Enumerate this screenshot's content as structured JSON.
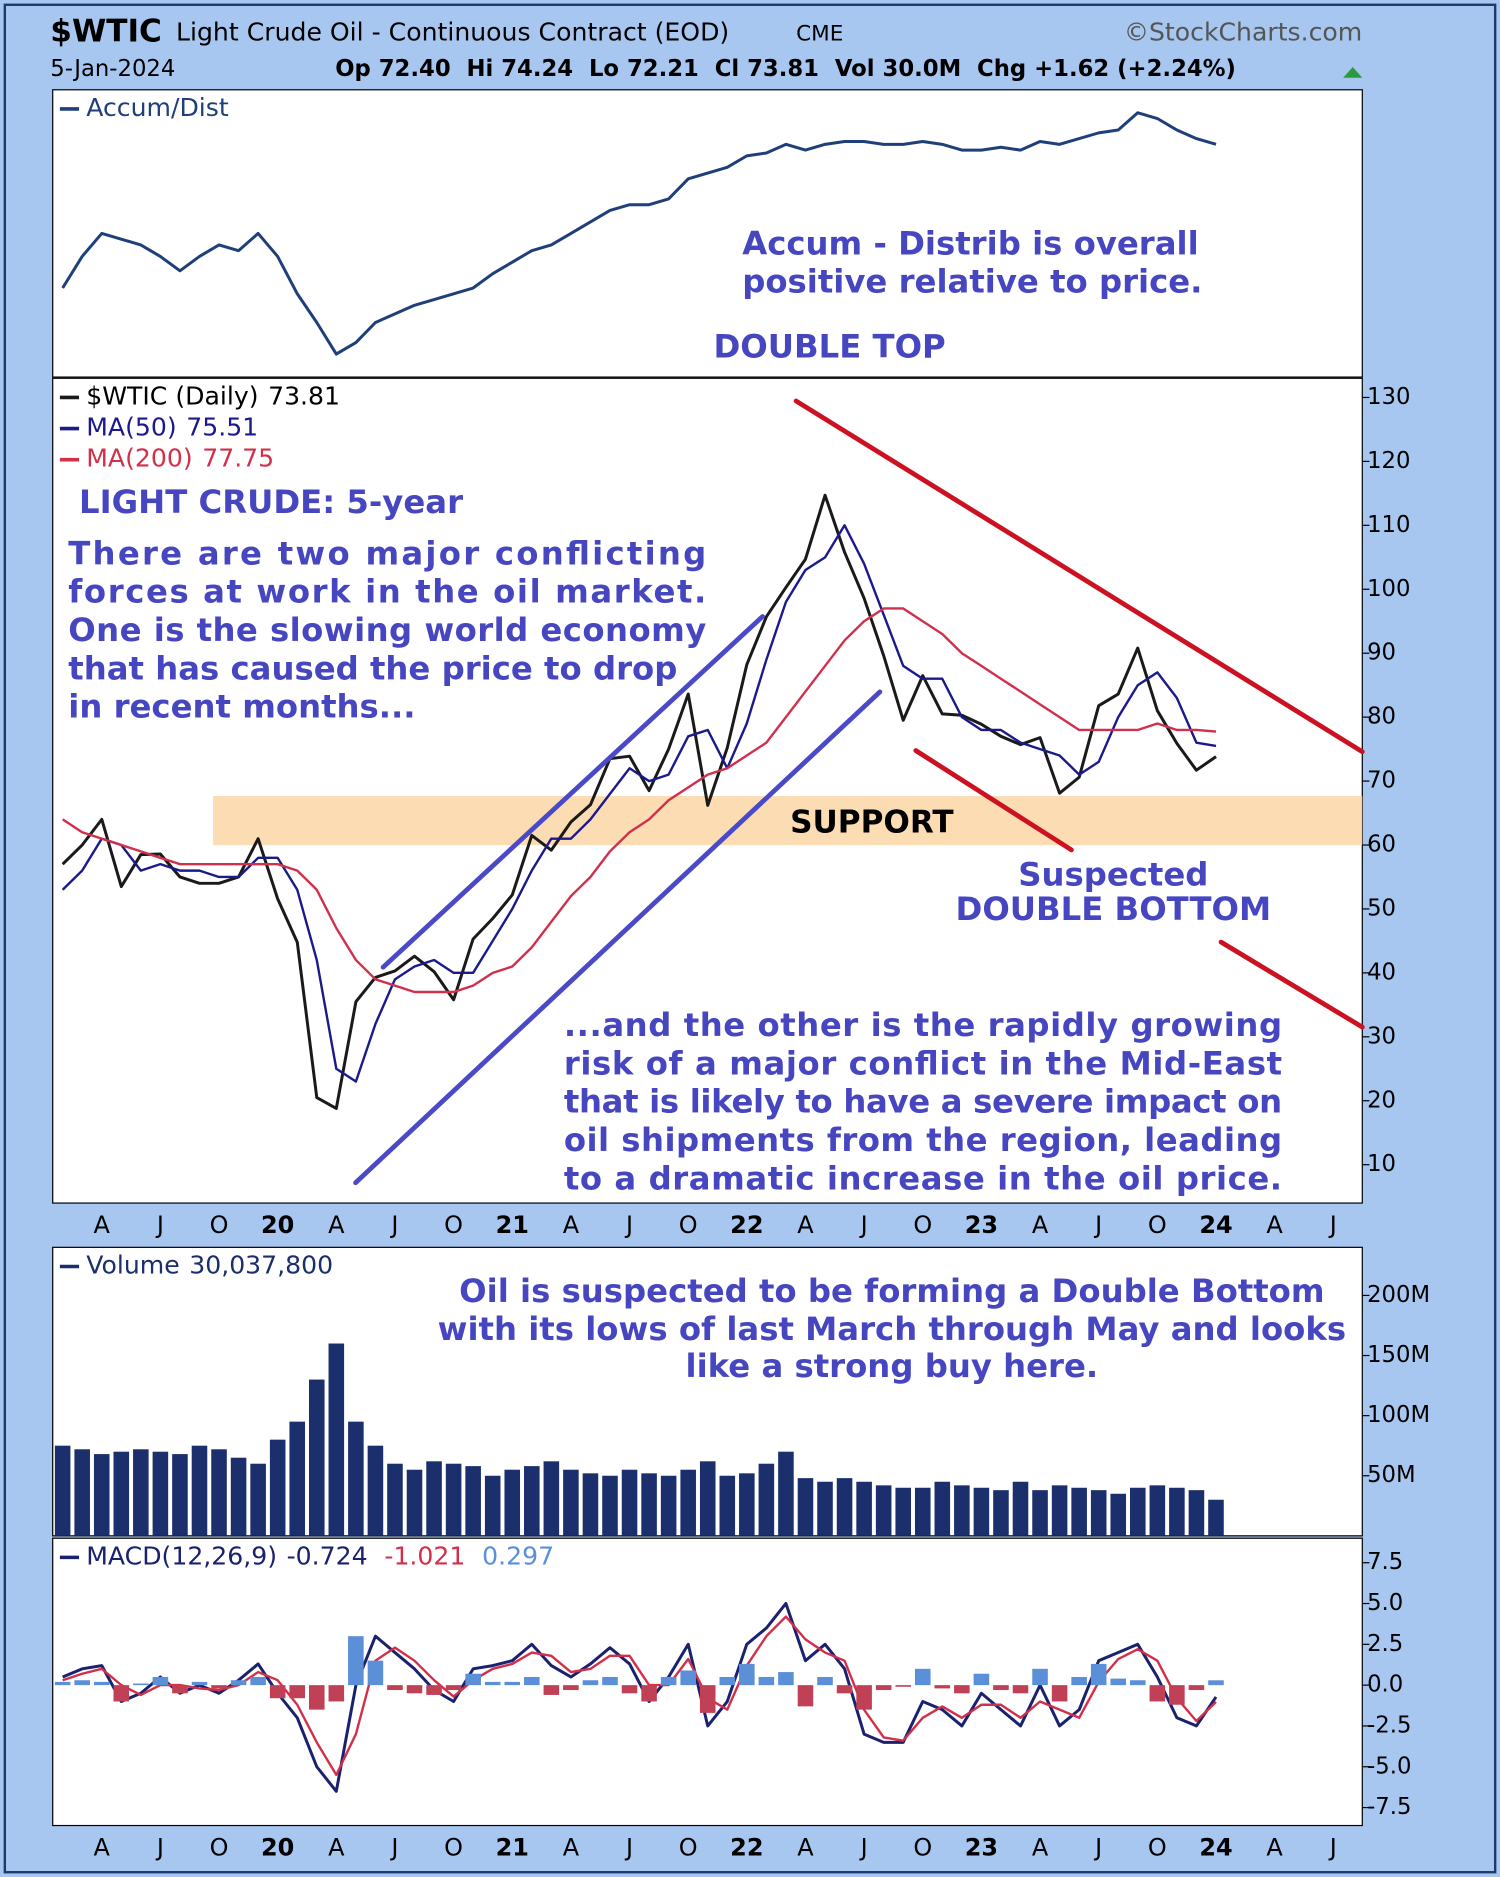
{
  "header": {
    "symbol": "$WTIC",
    "name": "Light Crude Oil - Continuous Contract (EOD)",
    "exchange": "CME",
    "source": "©StockCharts.com",
    "date": "5-Jan-2024",
    "quote": "Op 72.40  Hi 74.24  Lo 72.21  Cl 73.81  Vol 30.0M  Chg +1.62 (+2.24%)"
  },
  "chart_data": [
    {
      "type": "line",
      "ylim": [
        0,
        100
      ],
      "series": [
        {
          "name": "Accum/Dist",
          "color": "#1f3f7a",
          "values": [
            31,
            42,
            50,
            48,
            46,
            42,
            37,
            42,
            46,
            44,
            50,
            42,
            29,
            19,
            8,
            12,
            19,
            22,
            25,
            27,
            29,
            31,
            36,
            40,
            44,
            46,
            50,
            54,
            58,
            60,
            60,
            62,
            69,
            71,
            73,
            77,
            78,
            81,
            79,
            81,
            82,
            82,
            81,
            81,
            82,
            81,
            79,
            79,
            80,
            79,
            82,
            81,
            83,
            85,
            86,
            92,
            90,
            86,
            83,
            81,
            null,
            null,
            null,
            null,
            null,
            null,
            null
          ]
        }
      ],
      "annotations": [
        "Accum - Distrib is overall",
        "positive relative to price."
      ]
    },
    {
      "type": "line",
      "title": "LIGHT CRUDE: 5-year",
      "legend_values": true,
      "categories": [
        null,
        null,
        "A",
        null,
        null,
        "J",
        null,
        null,
        "O",
        null,
        null,
        "20",
        null,
        null,
        "A",
        null,
        null,
        "J",
        null,
        null,
        "O",
        null,
        null,
        "21",
        null,
        null,
        "A",
        null,
        null,
        "J",
        null,
        null,
        "O",
        null,
        null,
        "22",
        null,
        null,
        "A",
        null,
        null,
        "J",
        null,
        null,
        "O",
        null,
        null,
        "23",
        null,
        null,
        "A",
        null,
        null,
        "J",
        null,
        null,
        "O",
        null,
        null,
        "24",
        null,
        null,
        "A",
        null,
        null,
        "J",
        null
      ],
      "ylim": [
        4,
        133
      ],
      "yticks": [
        10,
        20,
        30,
        40,
        50,
        60,
        70,
        80,
        90,
        100,
        110,
        120,
        130
      ],
      "series": [
        {
          "name": "$WTIC (Daily)",
          "color": "#1a1a1a",
          "values": [
            57,
            60,
            64,
            53.5,
            58.5,
            58.6,
            55,
            54,
            54,
            55,
            61,
            51.6,
            44.8,
            20.5,
            18.8,
            35.5,
            39.3,
            40.3,
            42.6,
            40.2,
            35.8,
            45.3,
            48.5,
            52.2,
            61.5,
            59.2,
            63.6,
            66.3,
            73.5,
            73.9,
            68.5,
            75,
            83.6,
            66.2,
            75.2,
            88.2,
            95.7,
            100.3,
            104.7,
            114.7,
            105.8,
            98.6,
            89.6,
            79.5,
            86.5,
            80.5,
            80.3,
            78.9,
            77,
            75.7,
            76.8,
            68.1,
            70.6,
            81.8,
            83.6,
            90.8,
            81,
            75.9,
            71.7,
            73.81,
            null,
            null,
            null,
            null,
            null,
            null,
            null
          ]
        },
        {
          "name": "MA(50)",
          "color": "#1a1a8c",
          "values": [
            53,
            56,
            61,
            60,
            56,
            57,
            56,
            56,
            55,
            55,
            58,
            58,
            53,
            42,
            25,
            23,
            32,
            39,
            41,
            42,
            40,
            40,
            45,
            50,
            56,
            61,
            61,
            64,
            68,
            72,
            70,
            71,
            77,
            78,
            72,
            79,
            89,
            98,
            103,
            105,
            110,
            104,
            96,
            88,
            86,
            86,
            80,
            78,
            78,
            76,
            75,
            74,
            71,
            73,
            80,
            85,
            87,
            83,
            76,
            75.51,
            null,
            null,
            null,
            null,
            null,
            null,
            null
          ]
        },
        {
          "name": "MA(200)",
          "color": "#d0304a",
          "values": [
            64,
            62,
            61,
            60,
            59,
            58,
            57,
            57,
            57,
            57,
            57,
            57,
            56,
            53,
            47,
            42,
            39,
            38,
            37,
            37,
            37,
            38,
            40,
            41,
            44,
            48,
            52,
            55,
            59,
            62,
            64,
            67,
            69,
            71,
            72,
            74,
            76,
            80,
            84,
            88,
            92,
            95,
            97,
            97,
            95,
            93,
            90,
            88,
            86,
            84,
            82,
            80,
            78,
            78,
            78,
            78,
            79,
            78,
            78,
            77.75,
            null,
            null,
            null,
            null,
            null,
            null,
            null
          ]
        }
      ],
      "annotations": {
        "double_top": "DOUBLE TOP",
        "support": "SUPPORT",
        "double_bottom": [
          "Suspected",
          "DOUBLE BOTTOM"
        ],
        "left_note": [
          "There are two major conflicting",
          "forces at work in the oil market.",
          "One is the slowing world economy",
          "that has caused the price to drop",
          "in recent months..."
        ],
        "right_note": [
          "...and the other is the rapidly growing",
          "risk of a major conflict in the Mid-East",
          "that is likely to have a severe impact on",
          "oil shipments from the region, leading",
          "to a dramatic increase in the oil price."
        ]
      }
    },
    {
      "type": "bar",
      "ylim": [
        0,
        240
      ],
      "yticks": [
        {
          "value": 50,
          "label": "50M"
        },
        {
          "value": 100,
          "label": "100M"
        },
        {
          "value": 150,
          "label": "150M"
        },
        {
          "value": 200,
          "label": "200M"
        }
      ],
      "series": [
        {
          "name": "Volume",
          "legend_value_label": "30,037,800",
          "color": "#1a2f6b",
          "values": [
            75,
            72,
            68,
            70,
            72,
            70,
            68,
            75,
            72,
            65,
            60,
            80,
            95,
            130,
            160,
            95,
            75,
            60,
            55,
            62,
            60,
            58,
            50,
            55,
            58,
            62,
            55,
            52,
            50,
            55,
            52,
            50,
            55,
            62,
            50,
            52,
            60,
            70,
            48,
            45,
            48,
            45,
            42,
            40,
            40,
            45,
            42,
            40,
            38,
            45,
            38,
            42,
            40,
            38,
            35,
            40,
            42,
            40,
            38,
            30.0378,
            null,
            null,
            null,
            null,
            null,
            null,
            null
          ]
        }
      ],
      "annotations": [
        "Oil is suspected to be forming a Double Bottom",
        "with its lows of last March through May and looks",
        "like a strong buy here."
      ]
    },
    {
      "type": "line",
      "legend_values": true,
      "categories": [
        null,
        null,
        "A",
        null,
        null,
        "J",
        null,
        null,
        "O",
        null,
        null,
        "20",
        null,
        null,
        "A",
        null,
        null,
        "J",
        null,
        null,
        "O",
        null,
        null,
        "21",
        null,
        null,
        "A",
        null,
        null,
        "J",
        null,
        null,
        "O",
        null,
        null,
        "22",
        null,
        null,
        "A",
        null,
        null,
        "J",
        null,
        null,
        "O",
        null,
        null,
        "23",
        null,
        null,
        "A",
        null,
        null,
        "J",
        null,
        null,
        "O",
        null,
        null,
        "24",
        null,
        null,
        "A",
        null,
        null,
        "J",
        null
      ],
      "ylim": [
        -8.6,
        9
      ],
      "yticks": [
        7.5,
        {
          "value": 5,
          "label": "5.0"
        },
        2.5,
        {
          "value": 0,
          "label": "0.0"
        },
        -2.5,
        {
          "value": -5,
          "label": "-5.0"
        },
        -7.5
      ],
      "series": [
        {
          "name": "MACD(12,26,9)",
          "color": "#1a2270",
          "values": [
            0.5,
            1,
            1.2,
            -1,
            -0.5,
            0.5,
            -0.5,
            0,
            -0.5,
            0.3,
            1.3,
            -0.5,
            -2,
            -5,
            -6.5,
            0,
            3,
            2,
            1,
            -0.3,
            -1,
            1,
            1.2,
            1.5,
            2.5,
            1.2,
            0.5,
            1.3,
            2.3,
            1.3,
            -1,
            0.5,
            2.5,
            -2.5,
            -1,
            2.5,
            3.5,
            5,
            1.5,
            2.5,
            1,
            -3,
            -3.5,
            -3.5,
            -1,
            -1.5,
            -2.5,
            -0.5,
            -1.5,
            -2.5,
            0,
            -2.5,
            -1.5,
            1.5,
            2,
            2.5,
            0.5,
            -2,
            -2.5,
            -0.724,
            null,
            null,
            null,
            null,
            null,
            null,
            null
          ]
        },
        {
          "color": "#d2304a",
          "values": [
            0.3,
            0.7,
            1,
            0,
            -0.6,
            0,
            0,
            -0.2,
            -0.3,
            0,
            0.8,
            0.3,
            -1.2,
            -3.5,
            -5.5,
            -3,
            1.5,
            2.3,
            1.5,
            0.3,
            -0.7,
            0.3,
            1,
            1.3,
            2,
            1.8,
            0.8,
            1,
            1.8,
            1.8,
            0,
            0,
            1.6,
            -0.8,
            -1.5,
            1.2,
            3,
            4.2,
            2.8,
            2,
            1.5,
            -1.5,
            -3.2,
            -3.4,
            -2,
            -1.3,
            -2,
            -1.2,
            -1.2,
            -2,
            -1,
            -1.5,
            -2,
            0.2,
            1.6,
            2.2,
            1.5,
            -0.8,
            -2.2,
            -1.021,
            null,
            null,
            null,
            null,
            null,
            null,
            null
          ]
        },
        {
          "type": "bar",
          "color": "#5b8fd8",
          "negative_color": "#c04055",
          "values": [
            0.2,
            0.3,
            0.2,
            -1,
            0.1,
            0.5,
            -0.5,
            0.2,
            -0.2,
            0.3,
            0.5,
            -0.8,
            -0.8,
            -1.5,
            -1,
            3,
            1.5,
            -0.3,
            -0.5,
            -0.6,
            -0.3,
            0.7,
            0.2,
            0.2,
            0.5,
            -0.6,
            -0.3,
            0.3,
            0.5,
            -0.5,
            -1,
            0.5,
            0.9,
            -1.7,
            0.5,
            1.3,
            0.5,
            0.8,
            -1.3,
            0.5,
            -0.5,
            -1.5,
            -0.3,
            -0.1,
            1,
            -0.2,
            -0.5,
            0.7,
            -0.3,
            -0.5,
            1,
            -1,
            0.5,
            1.3,
            0.4,
            0.3,
            -1,
            -1.2,
            -0.3,
            0.297,
            null,
            null,
            null,
            null,
            null,
            null,
            null
          ]
        }
      ]
    }
  ]
}
